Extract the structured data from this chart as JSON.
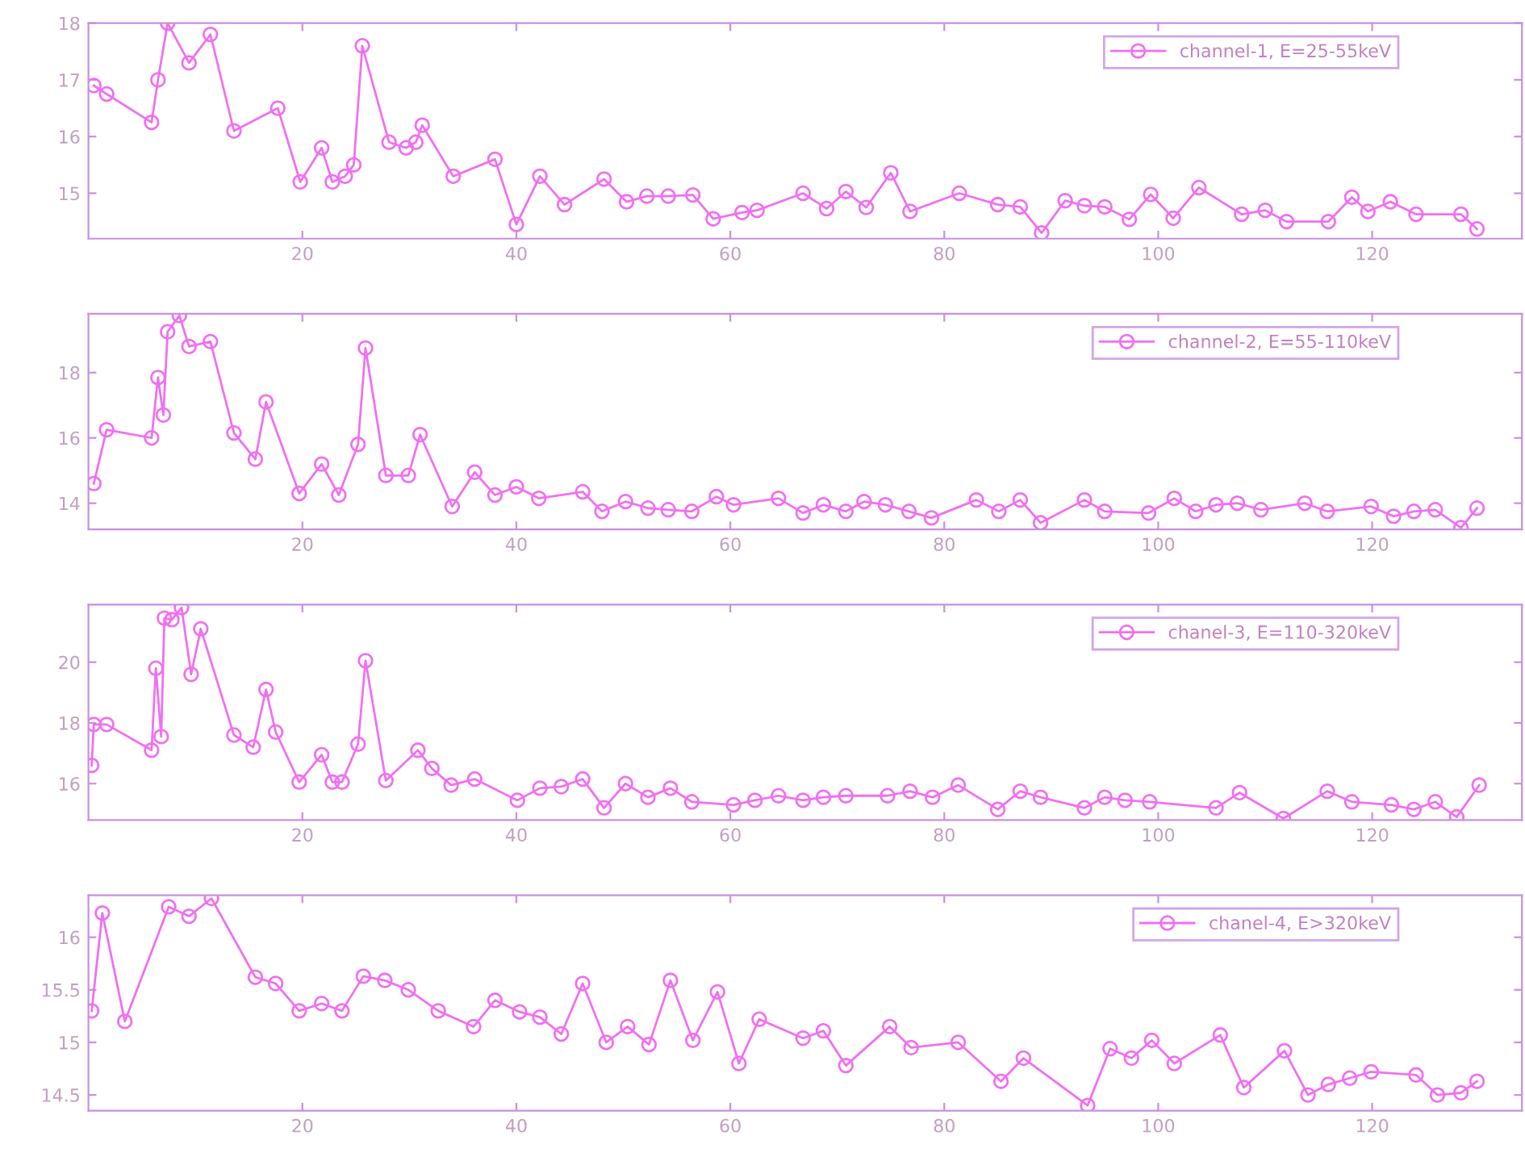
{
  "chart_data": [
    {
      "type": "line",
      "marker": "circle",
      "legend": "top right",
      "xlim": [
        0,
        134
      ],
      "xticks": [
        20,
        40,
        60,
        80,
        100,
        120
      ],
      "ylim": [
        14.2,
        18
      ],
      "yticks": [
        15,
        16,
        17,
        18
      ],
      "series": [
        {
          "name": "channel-1, E=25-55keV",
          "color": "#f070f0",
          "x": [
            0.5,
            1.7,
            5.9,
            6.5,
            7.4,
            9.4,
            11.4,
            13.6,
            17.7,
            19.8,
            21.8,
            22.8,
            24,
            24.8,
            25.6,
            28.1,
            29.7,
            30.6,
            31.2,
            34.1,
            38,
            40,
            42.2,
            44.5,
            48.2,
            50.3,
            52.2,
            54.2,
            56.5,
            58.4,
            61.1,
            62.5,
            66.8,
            69,
            70.8,
            72.7,
            75,
            76.8,
            81.4,
            85,
            87.1,
            89.1,
            91.3,
            93.1,
            95,
            97.3,
            99.3,
            101.4,
            103.8,
            107.8,
            110,
            112,
            115.9,
            118.1,
            119.6,
            121.7,
            124.1,
            128.3,
            129.8
          ],
          "values": [
            16.9,
            16.75,
            16.25,
            17.0,
            18.0,
            17.3,
            17.8,
            16.1,
            16.5,
            15.2,
            15.8,
            15.2,
            15.3,
            15.5,
            17.6,
            15.9,
            15.8,
            15.9,
            16.2,
            15.3,
            15.6,
            14.45,
            15.3,
            14.8,
            15.25,
            14.85,
            14.95,
            14.95,
            14.97,
            14.55,
            14.66,
            14.7,
            15.0,
            14.73,
            15.03,
            14.75,
            15.36,
            14.68,
            15.0,
            14.8,
            14.76,
            14.3,
            14.87,
            14.78,
            14.76,
            14.54,
            14.98,
            14.56,
            15.1,
            14.63,
            14.7,
            14.5,
            14.5,
            14.93,
            14.68,
            14.85,
            14.63,
            14.63,
            14.37
          ]
        }
      ]
    },
    {
      "type": "line",
      "marker": "circle",
      "legend": "top right",
      "xlim": [
        0,
        134
      ],
      "xticks": [
        20,
        40,
        60,
        80,
        100,
        120
      ],
      "ylim": [
        13.2,
        19.8
      ],
      "yticks": [
        14,
        16,
        18
      ],
      "series": [
        {
          "name": "channel-2, E=55-110keV",
          "color": "#f070f0",
          "x": [
            0.5,
            1.7,
            5.9,
            6.5,
            7,
            7.4,
            8.5,
            9.4,
            11.4,
            13.6,
            15.6,
            16.6,
            19.7,
            21.8,
            23.4,
            25.2,
            25.9,
            27.8,
            29.9,
            31,
            34,
            36.1,
            38,
            40,
            42.1,
            46.2,
            48,
            50.2,
            52.3,
            54.2,
            56.4,
            58.7,
            60.3,
            64.5,
            66.8,
            68.7,
            70.8,
            72.5,
            74.5,
            76.7,
            78.8,
            83,
            85.1,
            87.1,
            89,
            93.1,
            95,
            99.1,
            101.5,
            103.5,
            105.4,
            107.4,
            109.6,
            113.7,
            115.8,
            119.9,
            122,
            123.9,
            125.9,
            128.3,
            129.8
          ],
          "values": [
            14.6,
            16.25,
            16.0,
            17.85,
            16.7,
            19.25,
            19.75,
            18.8,
            18.95,
            16.15,
            15.35,
            17.1,
            14.3,
            15.2,
            14.25,
            15.8,
            18.75,
            14.85,
            14.85,
            16.1,
            13.9,
            14.95,
            14.25,
            14.5,
            14.15,
            14.35,
            13.75,
            14.05,
            13.85,
            13.8,
            13.75,
            14.2,
            13.95,
            14.15,
            13.7,
            13.95,
            13.75,
            14.05,
            13.95,
            13.75,
            13.55,
            14.1,
            13.75,
            14.1,
            13.4,
            14.1,
            13.75,
            13.7,
            14.15,
            13.75,
            13.95,
            14.0,
            13.8,
            14.0,
            13.75,
            13.9,
            13.6,
            13.75,
            13.8,
            13.25,
            13.85
          ]
        }
      ]
    },
    {
      "type": "line",
      "marker": "circle",
      "legend": "top right",
      "xlim": [
        0,
        134
      ],
      "xticks": [
        20,
        40,
        60,
        80,
        100,
        120
      ],
      "ylim": [
        14.8,
        21.9
      ],
      "yticks": [
        16,
        18,
        20
      ],
      "series": [
        {
          "name": "chanel-3, E=110-320keV",
          "color": "#f070f0",
          "x": [
            0.3,
            0.5,
            1.7,
            5.9,
            6.3,
            6.8,
            7.1,
            7.8,
            8.7,
            9.6,
            10.5,
            13.6,
            15.4,
            16.6,
            17.5,
            19.7,
            21.8,
            22.8,
            23.7,
            25.2,
            25.9,
            27.8,
            30.8,
            32.1,
            33.9,
            36.1,
            40.1,
            42.2,
            44.2,
            46.2,
            48.2,
            50.2,
            52.3,
            54.4,
            56.4,
            60.3,
            62.3,
            64.5,
            66.8,
            68.7,
            70.8,
            74.7,
            76.8,
            78.9,
            81.3,
            85,
            87.1,
            89,
            93.1,
            95,
            96.9,
            99.2,
            105.4,
            107.6,
            111.7,
            115.8,
            118.1,
            121.8,
            123.9,
            125.9,
            127.9,
            130
          ],
          "values": [
            16.6,
            17.95,
            17.95,
            17.1,
            19.8,
            17.55,
            21.45,
            21.4,
            21.8,
            19.6,
            21.1,
            17.6,
            17.2,
            19.1,
            17.7,
            16.05,
            16.95,
            16.05,
            16.05,
            17.3,
            20.05,
            16.1,
            17.1,
            16.5,
            15.95,
            16.15,
            15.45,
            15.85,
            15.9,
            16.15,
            15.2,
            16.0,
            15.55,
            15.85,
            15.4,
            15.3,
            15.45,
            15.6,
            15.45,
            15.55,
            15.6,
            15.6,
            15.75,
            15.55,
            15.95,
            15.15,
            15.75,
            15.55,
            15.2,
            15.55,
            15.45,
            15.4,
            15.2,
            15.7,
            14.85,
            15.75,
            15.4,
            15.3,
            15.15,
            15.4,
            14.9,
            15.95
          ]
        }
      ]
    },
    {
      "type": "line",
      "marker": "circle",
      "legend": "top right",
      "xlim": [
        0,
        134
      ],
      "xticks": [
        20,
        40,
        60,
        80,
        100,
        120
      ],
      "ylim": [
        14.35,
        16.4
      ],
      "yticks": [
        14.5,
        15,
        15.5,
        16
      ],
      "series": [
        {
          "name": "chanel-4, E>320keV",
          "color": "#f070f0",
          "x": [
            0.3,
            1.3,
            3.4,
            7.5,
            9.4,
            11.5,
            15.6,
            17.5,
            19.7,
            21.8,
            23.7,
            25.7,
            27.7,
            29.9,
            32.7,
            36,
            38,
            40.3,
            42.2,
            44.2,
            46.2,
            48.4,
            50.4,
            52.4,
            54.4,
            56.5,
            58.8,
            60.8,
            62.7,
            66.8,
            68.7,
            70.8,
            74.9,
            76.9,
            81.3,
            85.3,
            87.4,
            93.4,
            95.5,
            97.5,
            99.4,
            101.5,
            105.8,
            108,
            111.8,
            114,
            115.9,
            117.9,
            119.9,
            124.1,
            126.1,
            128.3,
            129.8
          ],
          "values": [
            15.3,
            16.23,
            15.2,
            16.29,
            16.2,
            16.37,
            15.62,
            15.56,
            15.3,
            15.37,
            15.3,
            15.63,
            15.59,
            15.5,
            15.3,
            15.15,
            15.4,
            15.29,
            15.24,
            15.08,
            15.56,
            15.0,
            15.15,
            14.98,
            15.59,
            15.02,
            15.48,
            14.8,
            15.22,
            15.04,
            15.11,
            14.78,
            15.15,
            14.95,
            15.0,
            14.63,
            14.85,
            14.4,
            14.94,
            14.85,
            15.02,
            14.8,
            15.07,
            14.57,
            14.92,
            14.5,
            14.6,
            14.66,
            14.72,
            14.69,
            14.5,
            14.52,
            14.63
          ]
        }
      ]
    }
  ]
}
